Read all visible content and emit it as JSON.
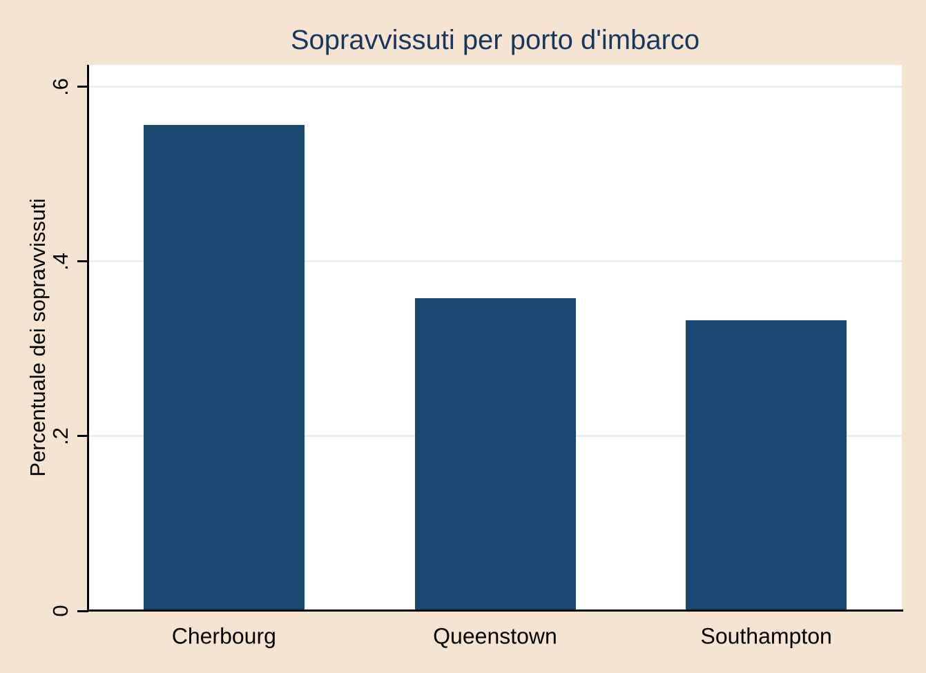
{
  "window": {
    "background_color": "#f5e4d2"
  },
  "chart_data": {
    "type": "bar",
    "title": "Sopravvissuti per porto d'imbarco",
    "categories": [
      "Cherbourg",
      "Queenstown",
      "Southampton"
    ],
    "values": [
      0.556,
      0.358,
      0.333
    ],
    "xlabel": "",
    "ylabel": "Percentuale dei sopravvissuti",
    "ylim": [
      0,
      0.625
    ],
    "yticks": [
      {
        "value": 0,
        "label": "0"
      },
      {
        "value": 0.2,
        "label": ".2"
      },
      {
        "value": 0.4,
        "label": ".4"
      },
      {
        "value": 0.6,
        "label": ".6"
      }
    ],
    "grid": "horizontal",
    "legend": "none",
    "tick_label_rotation": 90,
    "colors": {
      "bar": "#1a476f",
      "background": "#f5e4d2",
      "plot_background": "#ffffff",
      "gridline": "#e9eef3",
      "title": "#17375e",
      "axis": "#000000",
      "text": "#000000"
    }
  }
}
